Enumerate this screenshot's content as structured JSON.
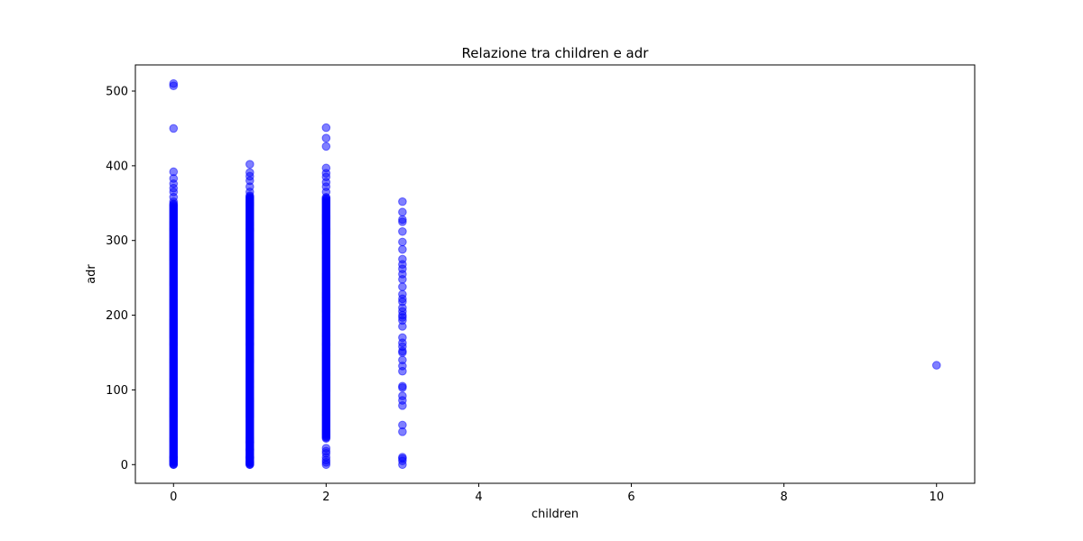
{
  "chart_data": {
    "type": "scatter",
    "title": "Relazione tra children e adr",
    "xlabel": "children",
    "ylabel": "adr",
    "xlim": [
      -0.5,
      10.5
    ],
    "ylim": [
      -25,
      535
    ],
    "xticks": [
      0,
      2,
      4,
      6,
      8,
      10
    ],
    "yticks": [
      0,
      100,
      200,
      300,
      400,
      500
    ],
    "grid": false,
    "marker_color": "#0000ff",
    "marker_alpha": 0.5,
    "columns": [
      {
        "x": 0,
        "dense_range": [
          0,
          350
        ],
        "points": [
          0,
          5,
          10,
          352,
          358,
          365,
          370,
          376,
          383,
          392,
          450,
          507,
          510
        ]
      },
      {
        "x": 1,
        "dense_range": [
          0,
          360
        ],
        "points": [
          0,
          3,
          10,
          20,
          30,
          365,
          372,
          380,
          386,
          391,
          402
        ]
      },
      {
        "x": 2,
        "dense_range": [
          35,
          358
        ],
        "points": [
          0,
          3,
          6,
          10,
          15,
          18,
          22,
          365,
          372,
          378,
          385,
          390,
          397,
          426,
          437,
          451
        ]
      },
      {
        "x": 3,
        "dense_range": null,
        "points": [
          0,
          5,
          8,
          10,
          44,
          53,
          79,
          86,
          92,
          103,
          105,
          125,
          132,
          140,
          150,
          152,
          158,
          163,
          170,
          185,
          193,
          197,
          200,
          205,
          210,
          218,
          222,
          228,
          238,
          248,
          255,
          262,
          268,
          275,
          288,
          298,
          312,
          325,
          328,
          338,
          352
        ]
      },
      {
        "x": 10,
        "dense_range": null,
        "points": [
          133
        ]
      }
    ]
  }
}
